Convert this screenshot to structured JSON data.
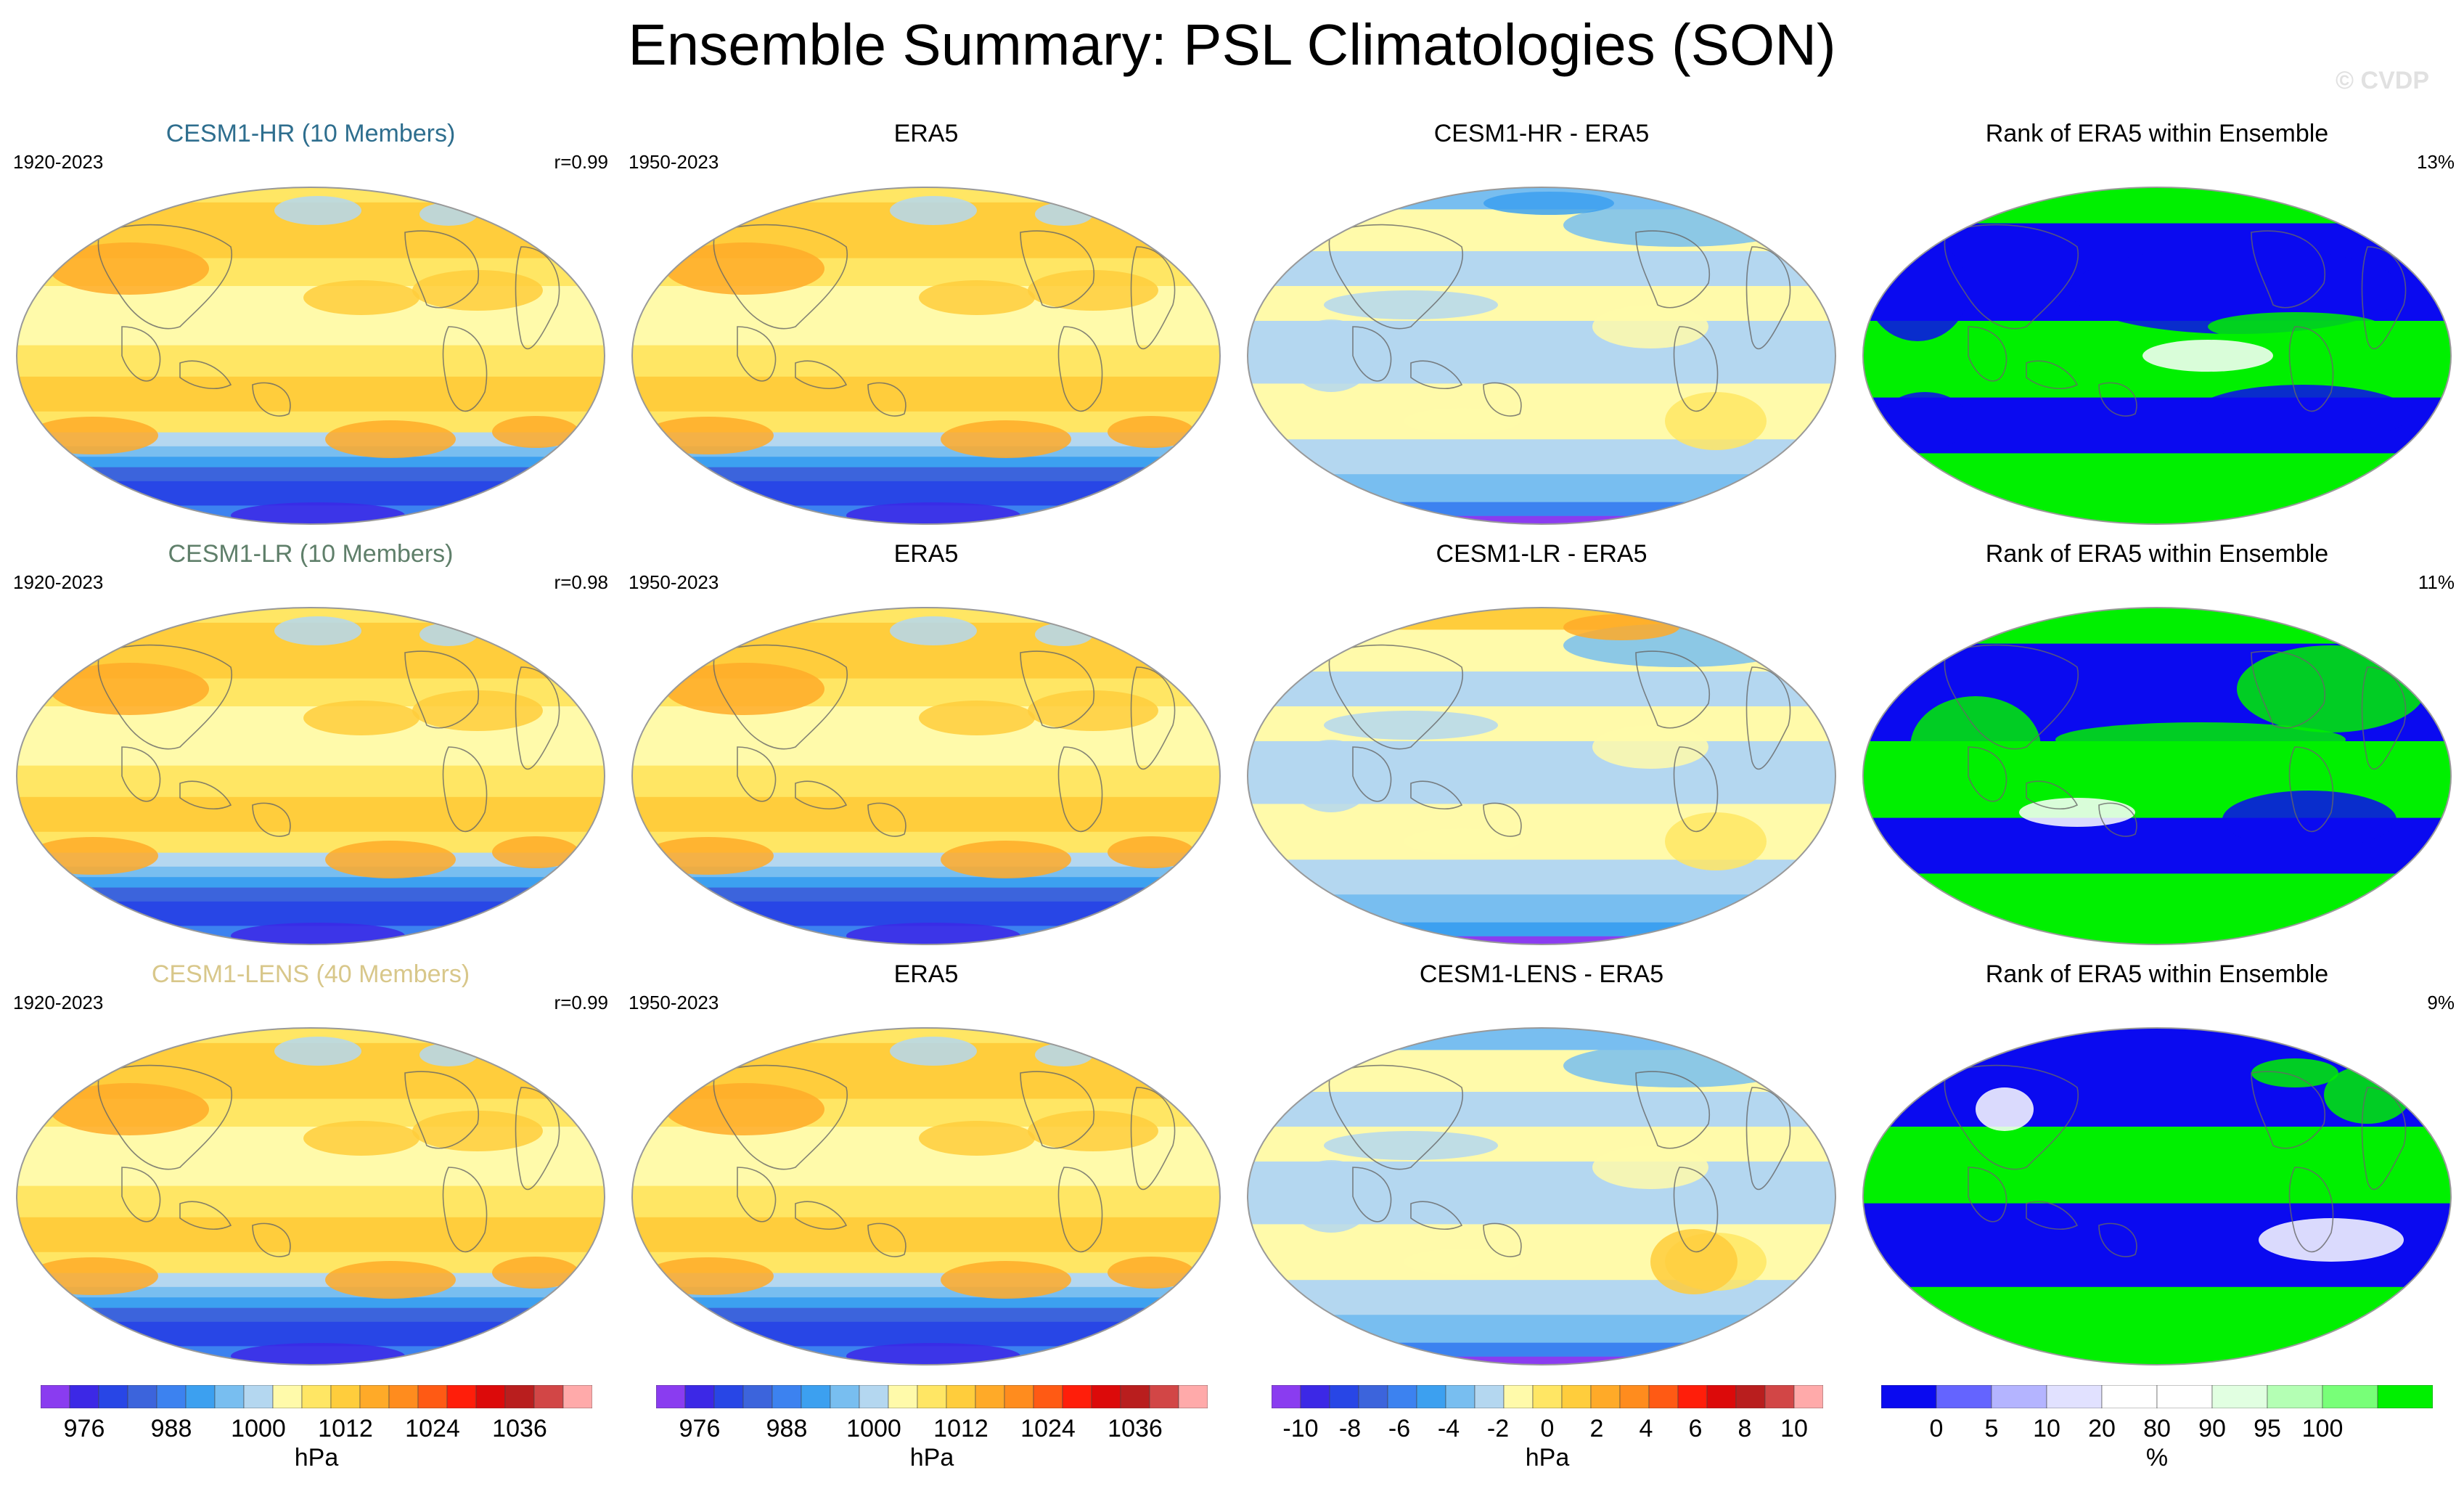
{
  "title": "Ensemble Summary: PSL Climatologies (SON)",
  "watermark": "© CVDP",
  "rows": [
    {
      "panels": [
        {
          "title": "CESM1-HR (10 Members)",
          "title_color": "#2e6e8e",
          "left": "1920-2023",
          "right": "r=0.99",
          "kind": "psl",
          "variant": 0
        },
        {
          "title": "ERA5",
          "title_color": "#000000",
          "left": "1950-2023",
          "right": "",
          "kind": "psl",
          "variant": 1
        },
        {
          "title": "CESM1-HR - ERA5",
          "title_color": "#000000",
          "left": "",
          "right": "",
          "kind": "diff",
          "variant": 0
        },
        {
          "title": "Rank of ERA5 within Ensemble",
          "title_color": "#000000",
          "left": "",
          "right": "13%",
          "kind": "rank",
          "variant": 0
        }
      ]
    },
    {
      "panels": [
        {
          "title": "CESM1-LR (10 Members)",
          "title_color": "#5f7f6a",
          "left": "1920-2023",
          "right": "r=0.98",
          "kind": "psl",
          "variant": 2
        },
        {
          "title": "ERA5",
          "title_color": "#000000",
          "left": "1950-2023",
          "right": "",
          "kind": "psl",
          "variant": 1
        },
        {
          "title": "CESM1-LR - ERA5",
          "title_color": "#000000",
          "left": "",
          "right": "",
          "kind": "diff",
          "variant": 1
        },
        {
          "title": "Rank of ERA5 within Ensemble",
          "title_color": "#000000",
          "left": "",
          "right": "11%",
          "kind": "rank",
          "variant": 1
        }
      ]
    },
    {
      "panels": [
        {
          "title": "CESM1-LENS (40 Members)",
          "title_color": "#d8c78a",
          "left": "1920-2023",
          "right": "r=0.99",
          "kind": "psl",
          "variant": 3
        },
        {
          "title": "ERA5",
          "title_color": "#000000",
          "left": "1950-2023",
          "right": "",
          "kind": "psl",
          "variant": 1
        },
        {
          "title": "CESM1-LENS - ERA5",
          "title_color": "#000000",
          "left": "",
          "right": "",
          "kind": "diff",
          "variant": 2
        },
        {
          "title": "Rank of ERA5 within Ensemble",
          "title_color": "#000000",
          "left": "",
          "right": "9%",
          "kind": "rank",
          "variant": 2
        }
      ]
    }
  ],
  "colorbars": [
    {
      "colors": [
        "#8a3cf0",
        "#3c28e6",
        "#2846e6",
        "#3c64dc",
        "#3c82f0",
        "#3ca0f0",
        "#78bef0",
        "#b4d7f0",
        "#fffaaa",
        "#ffe664",
        "#ffcd3c",
        "#ffaa28",
        "#ff8c1e",
        "#ff5a14",
        "#ff1e0a",
        "#dc0a0a",
        "#b91e1e",
        "#d24646",
        "#ffaaaa"
      ],
      "ticks": [
        "976",
        "988",
        "1000",
        "1012",
        "1024",
        "1036"
      ],
      "unit": "hPa"
    },
    {
      "colors": [
        "#8a3cf0",
        "#3c28e6",
        "#2846e6",
        "#3c64dc",
        "#3c82f0",
        "#3ca0f0",
        "#78bef0",
        "#b4d7f0",
        "#fffaaa",
        "#ffe664",
        "#ffcd3c",
        "#ffaa28",
        "#ff8c1e",
        "#ff5a14",
        "#ff1e0a",
        "#dc0a0a",
        "#b91e1e",
        "#d24646",
        "#ffaaaa"
      ],
      "ticks": [
        "976",
        "988",
        "1000",
        "1012",
        "1024",
        "1036"
      ],
      "unit": "hPa"
    },
    {
      "colors": [
        "#8a3cf0",
        "#3c28e6",
        "#2846e6",
        "#3c64dc",
        "#3c82f0",
        "#3ca0f0",
        "#78bef0",
        "#b4d7f0",
        "#fffaaa",
        "#ffe664",
        "#ffcd3c",
        "#ffaa28",
        "#ff8c1e",
        "#ff5a14",
        "#ff1e0a",
        "#dc0a0a",
        "#b91e1e",
        "#d24646",
        "#ffaaaa"
      ],
      "ticks": [
        "-10",
        "-8",
        "-6",
        "-4",
        "-2",
        "0",
        "2",
        "4",
        "6",
        "8",
        "10"
      ],
      "unit": "hPa"
    },
    {
      "colors": [
        "#0a0af0",
        "#6464ff",
        "#b4b4ff",
        "#e1e1ff",
        "#ffffff",
        "#ffffff",
        "#e1ffe1",
        "#b4ffb4",
        "#78ff78",
        "#00f000"
      ],
      "ticks": [
        "0",
        "5",
        "10",
        "20",
        "80",
        "90",
        "95",
        "100"
      ],
      "unit": "%"
    }
  ]
}
